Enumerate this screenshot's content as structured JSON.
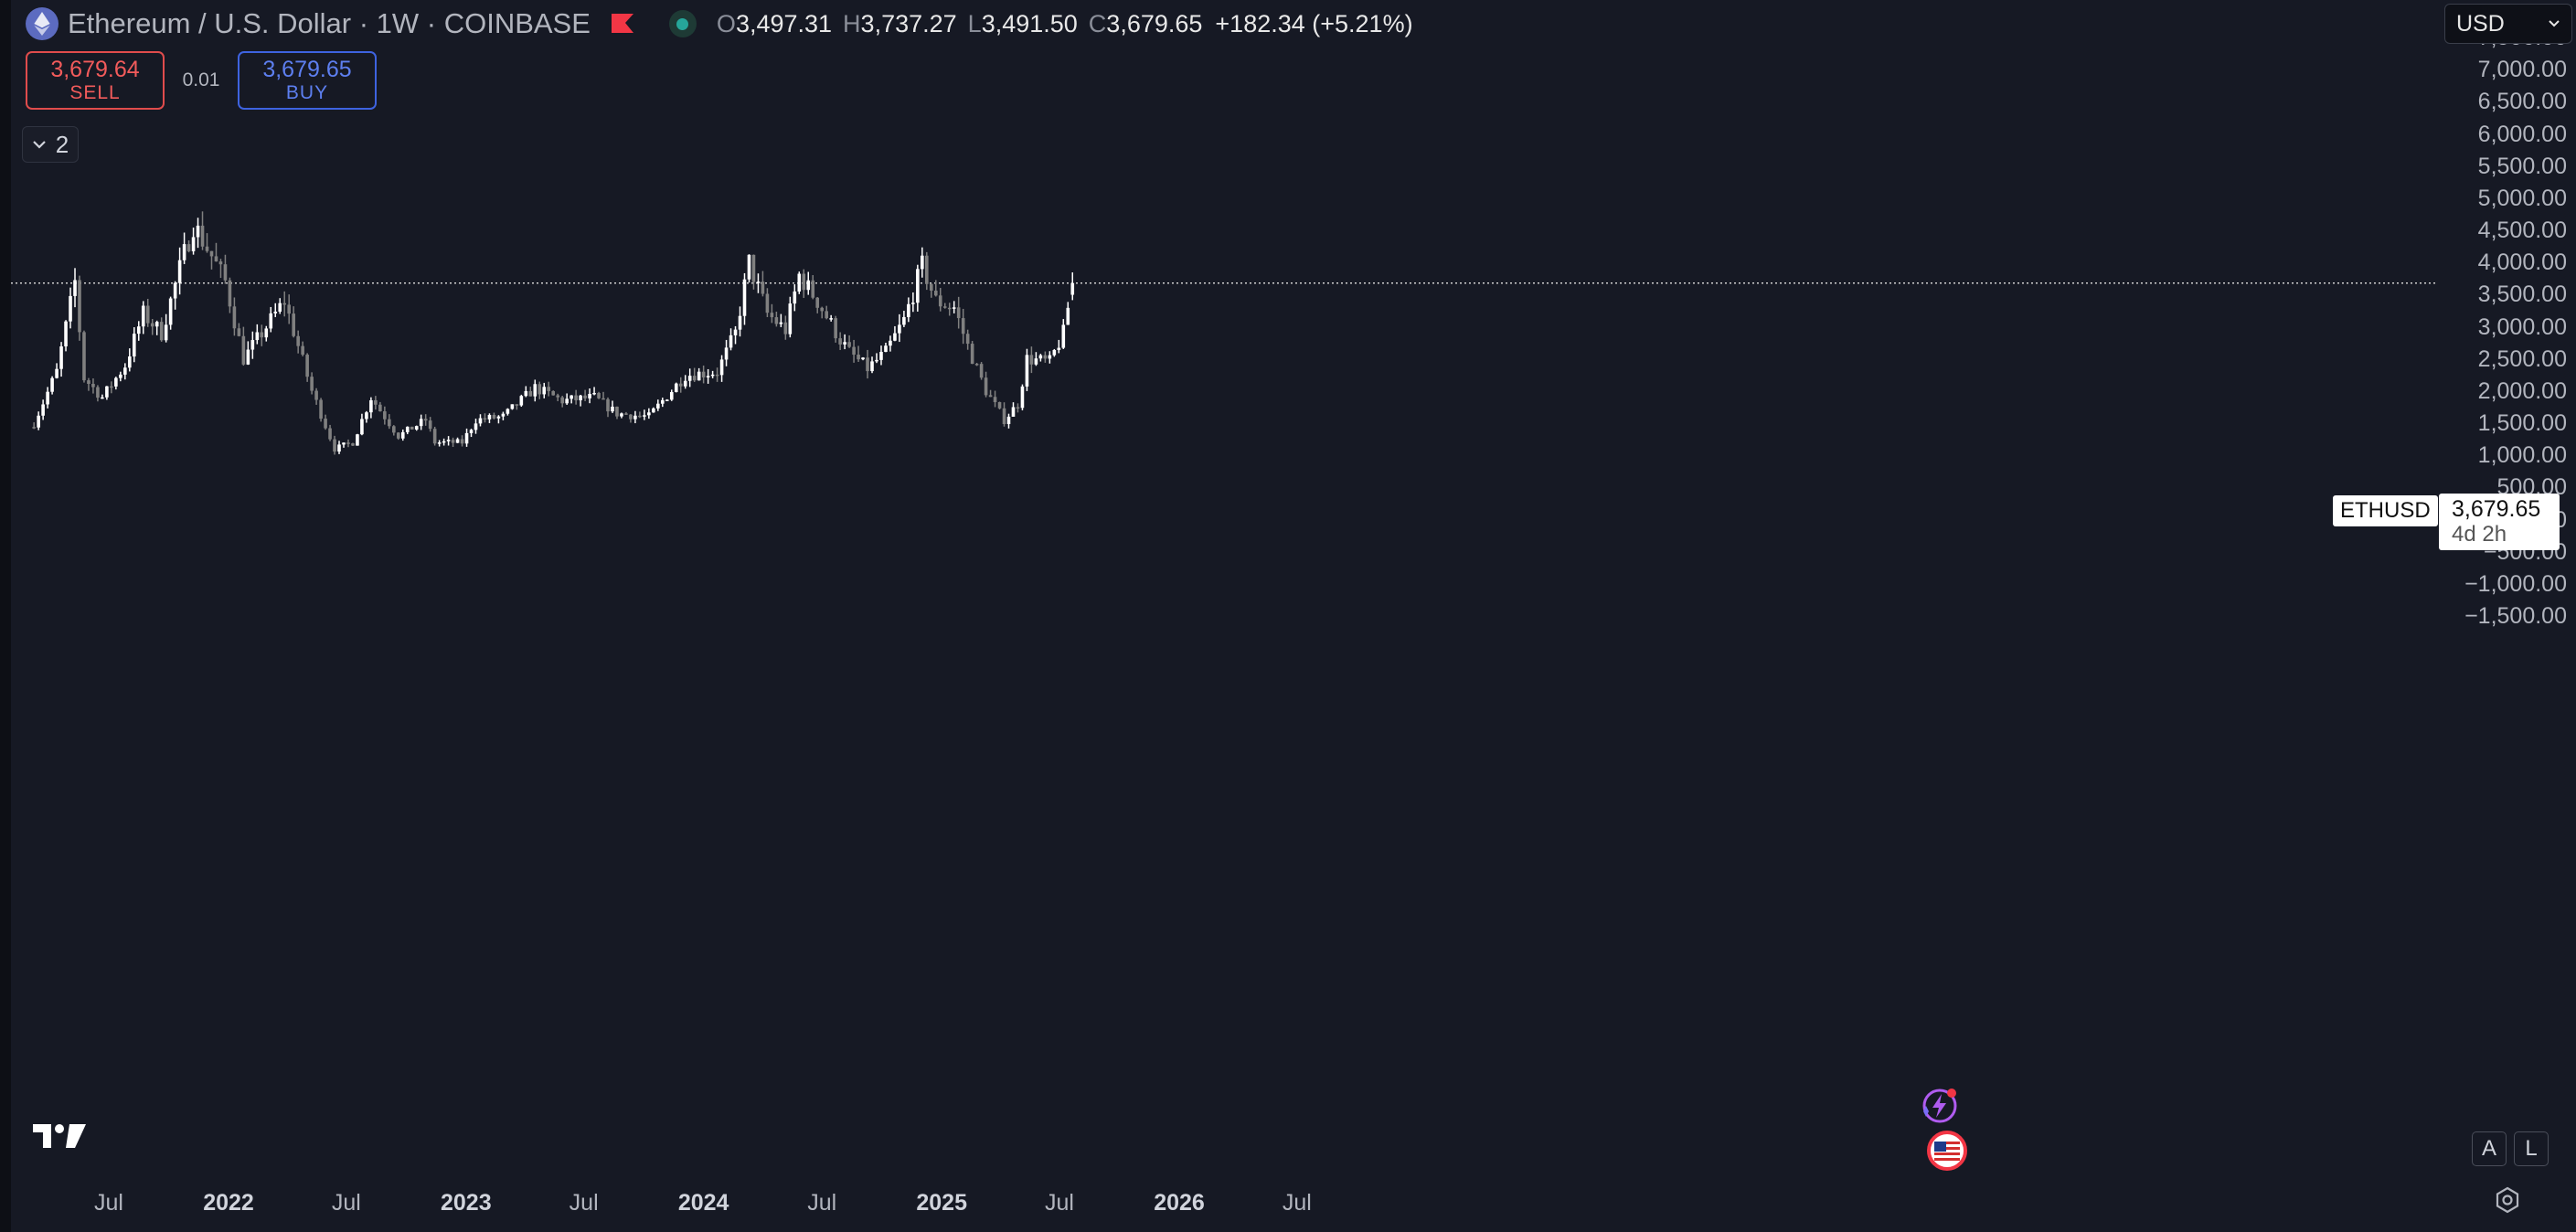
{
  "legend": {
    "symbol_title": "Ethereum / U.S. Dollar · 1W · COINBASE",
    "open_key": "O",
    "open": "3,497.31",
    "high_key": "H",
    "high": "3,737.27",
    "low_key": "L",
    "low": "3,491.50",
    "close_key": "C",
    "close": "3,679.65",
    "change": "+182.34 (+5.21%)"
  },
  "trade": {
    "sell_price": "3,679.64",
    "sell_label": "SELL",
    "spread": "0.01",
    "buy_price": "3,679.65",
    "buy_label": "BUY"
  },
  "indicators": {
    "collapsed_count": "2"
  },
  "currency": {
    "selected": "USD"
  },
  "last_price": {
    "symbol": "ETHUSD",
    "price": "3,679.65",
    "countdown": "4d 2h"
  },
  "axes_buttons": {
    "auto": "A",
    "log": "L"
  },
  "colors": {
    "background": "#161924",
    "candle_up": "#ffffff",
    "candle_down": "#808080",
    "sell": "#e04c4c",
    "buy": "#3e63e0",
    "status": "#26a69a"
  },
  "icons": {
    "coin": "ethereum-icon",
    "flag": "flag-icon",
    "status": "market-open-dot-icon",
    "chevron": "chevron-down-icon",
    "events": [
      "lightning-event-icon",
      "us-flag-event-icon"
    ],
    "logo": "tradingview-logo-icon",
    "settings": "settings-icon"
  },
  "chart_data": {
    "type": "candlestick",
    "symbol": "ETHUSD",
    "interval": "1W",
    "yticks": [
      "7,500.00",
      "7,000.00",
      "6,500.00",
      "6,000.00",
      "5,500.00",
      "5,000.00",
      "4,500.00",
      "4,000.00",
      "3,500.00",
      "3,000.00",
      "2,500.00",
      "2,000.00",
      "1,500.00",
      "1,000.00",
      "500.00",
      "0.00",
      "−500.00",
      "−1,000.00",
      "−1,500.00"
    ],
    "xticks": [
      "Jul",
      "2022",
      "Jul",
      "2023",
      "Jul",
      "2024",
      "Jul",
      "2025",
      "Jul",
      "2026",
      "Jul"
    ],
    "ylim": [
      -1750,
      7750
    ],
    "x_start": "2021-03",
    "x_end": "2026-09",
    "guide_closes": [
      [
        "2021-03-08",
        1500
      ],
      [
        "2021-04-12",
        2300
      ],
      [
        "2021-05-10",
        3700
      ],
      [
        "2021-05-24",
        2200
      ],
      [
        "2021-06-21",
        1900
      ],
      [
        "2021-07-26",
        2400
      ],
      [
        "2021-08-23",
        3200
      ],
      [
        "2021-09-20",
        2900
      ],
      [
        "2021-10-18",
        3900
      ],
      [
        "2021-11-08",
        4600
      ],
      [
        "2021-12-06",
        4100
      ],
      [
        "2021-12-27",
        3700
      ],
      [
        "2022-01-24",
        2500
      ],
      [
        "2022-02-21",
        2900
      ],
      [
        "2022-03-28",
        3400
      ],
      [
        "2022-05-09",
        2000
      ],
      [
        "2022-06-13",
        1100
      ],
      [
        "2022-07-11",
        1200
      ],
      [
        "2022-08-08",
        1900
      ],
      [
        "2022-09-19",
        1300
      ],
      [
        "2022-10-31",
        1550
      ],
      [
        "2022-11-14",
        1200
      ],
      [
        "2022-12-26",
        1200
      ],
      [
        "2023-01-16",
        1550
      ],
      [
        "2023-02-27",
        1600
      ],
      [
        "2023-04-17",
        2050
      ],
      [
        "2023-05-29",
        1850
      ],
      [
        "2023-07-17",
        1900
      ],
      [
        "2023-08-21",
        1650
      ],
      [
        "2023-10-09",
        1600
      ],
      [
        "2023-10-30",
        1850
      ],
      [
        "2023-12-04",
        2250
      ],
      [
        "2024-01-22",
        2300
      ],
      [
        "2024-02-19",
        2900
      ],
      [
        "2024-03-11",
        4000
      ],
      [
        "2024-04-08",
        3200
      ],
      [
        "2024-05-06",
        2950
      ],
      [
        "2024-05-27",
        3800
      ],
      [
        "2024-06-24",
        3400
      ],
      [
        "2024-07-29",
        2800
      ],
      [
        "2024-08-12",
        2600
      ],
      [
        "2024-09-09",
        2350
      ],
      [
        "2024-10-07",
        2600
      ],
      [
        "2024-11-04",
        3100
      ],
      [
        "2024-12-02",
        3950
      ],
      [
        "2024-12-23",
        3400
      ],
      [
        "2025-01-20",
        3300
      ],
      [
        "2025-02-10",
        2700
      ],
      [
        "2025-03-10",
        2000
      ],
      [
        "2025-04-07",
        1550
      ],
      [
        "2025-04-28",
        1800
      ],
      [
        "2025-05-12",
        2500
      ],
      [
        "2025-06-16",
        2450
      ],
      [
        "2025-07-07",
        2900
      ],
      [
        "2025-07-21",
        3700
      ]
    ]
  }
}
